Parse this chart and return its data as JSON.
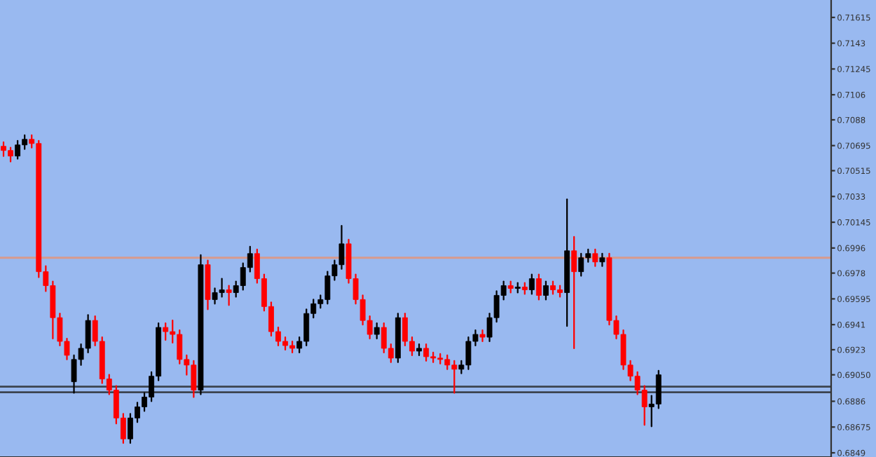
{
  "chart_data": {
    "type": "candlestick",
    "categories": [
      null,
      null,
      null,
      null,
      null,
      null,
      null,
      null,
      null,
      null,
      null,
      null,
      null,
      null,
      null,
      null,
      null,
      null,
      null,
      null,
      null,
      null,
      null,
      null,
      null,
      null,
      null,
      null,
      null,
      null,
      null,
      null,
      null,
      null,
      null,
      null,
      null,
      null,
      null,
      null,
      null,
      null,
      null,
      null,
      null,
      null,
      null,
      null,
      null,
      null,
      null,
      null,
      null,
      null,
      null,
      null,
      null,
      null,
      null,
      null,
      null,
      null,
      null,
      null,
      null,
      null,
      null,
      null,
      null,
      null,
      null,
      null,
      null,
      null,
      null,
      null,
      null,
      null,
      null,
      null,
      null,
      null,
      null,
      null,
      null,
      null,
      null,
      null,
      null,
      null,
      null,
      null,
      null,
      null,
      null,
      null,
      null,
      null,
      null,
      null,
      null,
      null,
      null,
      null,
      null,
      null,
      null,
      null,
      null,
      null,
      null,
      null,
      null,
      null,
      null,
      null,
      null,
      null
    ],
    "ohlc": [
      [
        0.7069,
        0.7072,
        0.7062,
        0.7066
      ],
      [
        0.7066,
        0.7068,
        0.7058,
        0.7062
      ],
      [
        0.7062,
        0.7073,
        0.706,
        0.707
      ],
      [
        0.707,
        0.7077,
        0.7067,
        0.7074
      ],
      [
        0.7074,
        0.7077,
        0.7068,
        0.7071
      ],
      [
        0.7071,
        0.7073,
        0.6975,
        0.6979
      ],
      [
        0.6979,
        0.6983,
        0.6965,
        0.6969
      ],
      [
        0.6969,
        0.6972,
        0.6931,
        0.6946
      ],
      [
        0.6946,
        0.6949,
        0.6926,
        0.6929
      ],
      [
        0.6929,
        0.6931,
        0.6916,
        0.6919
      ],
      [
        0.69,
        0.6919,
        0.6892,
        0.6916
      ],
      [
        0.6916,
        0.6927,
        0.6912,
        0.6924
      ],
      [
        0.6924,
        0.6948,
        0.6921,
        0.6944
      ],
      [
        0.6944,
        0.6947,
        0.6926,
        0.6929
      ],
      [
        0.6929,
        0.6932,
        0.6899,
        0.6902
      ],
      [
        0.6902,
        0.6905,
        0.6891,
        0.6894
      ],
      [
        0.6894,
        0.6897,
        0.687,
        0.6874
      ],
      [
        0.6874,
        0.6877,
        0.6856,
        0.6859
      ],
      [
        0.6859,
        0.6877,
        0.6856,
        0.6874
      ],
      [
        0.6874,
        0.6885,
        0.6871,
        0.6882
      ],
      [
        0.6882,
        0.6892,
        0.6879,
        0.6889
      ],
      [
        0.6889,
        0.6907,
        0.6886,
        0.6904
      ],
      [
        0.6904,
        0.6942,
        0.6901,
        0.6939
      ],
      [
        0.6939,
        0.6942,
        0.693,
        0.6936
      ],
      [
        0.6936,
        0.6944,
        0.6928,
        0.6934
      ],
      [
        0.6934,
        0.6937,
        0.6913,
        0.6916
      ],
      [
        0.6916,
        0.6919,
        0.6905,
        0.6912
      ],
      [
        0.6912,
        0.6915,
        0.6889,
        0.6894
      ],
      [
        0.6894,
        0.6991,
        0.6891,
        0.6984
      ],
      [
        0.6984,
        0.6987,
        0.6952,
        0.6959
      ],
      [
        0.6959,
        0.6967,
        0.6956,
        0.6964
      ],
      [
        0.6964,
        0.6974,
        0.6961,
        0.6966
      ],
      [
        0.6966,
        0.6969,
        0.6955,
        0.6964
      ],
      [
        0.6964,
        0.6972,
        0.6961,
        0.6969
      ],
      [
        0.6969,
        0.6985,
        0.6966,
        0.6982
      ],
      [
        0.6982,
        0.6997,
        0.6979,
        0.6992
      ],
      [
        0.6992,
        0.6995,
        0.6971,
        0.6974
      ],
      [
        0.6974,
        0.6977,
        0.6951,
        0.6954
      ],
      [
        0.6954,
        0.6957,
        0.6933,
        0.6936
      ],
      [
        0.6936,
        0.6939,
        0.6926,
        0.6929
      ],
      [
        0.6929,
        0.6932,
        0.6923,
        0.6926
      ],
      [
        0.6926,
        0.6929,
        0.6921,
        0.6924
      ],
      [
        0.6924,
        0.6932,
        0.6921,
        0.6929
      ],
      [
        0.6929,
        0.6952,
        0.6926,
        0.6949
      ],
      [
        0.6949,
        0.6959,
        0.6946,
        0.6956
      ],
      [
        0.6956,
        0.6962,
        0.6953,
        0.6959
      ],
      [
        0.6959,
        0.6979,
        0.6956,
        0.6976
      ],
      [
        0.6976,
        0.6987,
        0.6973,
        0.6984
      ],
      [
        0.6984,
        0.7012,
        0.6981,
        0.6999
      ],
      [
        0.6999,
        0.7002,
        0.6971,
        0.6974
      ],
      [
        0.6974,
        0.6977,
        0.6956,
        0.6959
      ],
      [
        0.6959,
        0.6962,
        0.6941,
        0.6944
      ],
      [
        0.6944,
        0.6947,
        0.6931,
        0.6934
      ],
      [
        0.6934,
        0.6942,
        0.6931,
        0.6939
      ],
      [
        0.6939,
        0.6942,
        0.6921,
        0.6924
      ],
      [
        0.6924,
        0.6927,
        0.6914,
        0.6917
      ],
      [
        0.6917,
        0.6949,
        0.6914,
        0.6946
      ],
      [
        0.6946,
        0.6949,
        0.6926,
        0.6929
      ],
      [
        0.6929,
        0.6932,
        0.6919,
        0.6922
      ],
      [
        0.6922,
        0.6927,
        0.6919,
        0.6924
      ],
      [
        0.6924,
        0.6927,
        0.6915,
        0.6918
      ],
      [
        0.6918,
        0.6921,
        0.6914,
        0.6917
      ],
      [
        0.6917,
        0.692,
        0.6913,
        0.6916
      ],
      [
        0.6916,
        0.6919,
        0.6909,
        0.6912
      ],
      [
        0.6912,
        0.6915,
        0.6892,
        0.6909
      ],
      [
        0.6909,
        0.6915,
        0.6906,
        0.6912
      ],
      [
        0.6912,
        0.6932,
        0.6909,
        0.6929
      ],
      [
        0.6929,
        0.6937,
        0.6926,
        0.6934
      ],
      [
        0.6934,
        0.6937,
        0.6929,
        0.6932
      ],
      [
        0.6932,
        0.6949,
        0.6929,
        0.6946
      ],
      [
        0.6946,
        0.6965,
        0.6943,
        0.6962
      ],
      [
        0.6962,
        0.6972,
        0.6959,
        0.6969
      ],
      [
        0.6969,
        0.6972,
        0.6964,
        0.6967
      ],
      [
        0.6967,
        0.6971,
        0.6964,
        0.6968
      ],
      [
        0.6968,
        0.6971,
        0.6963,
        0.6966
      ],
      [
        0.6966,
        0.6977,
        0.6963,
        0.6974
      ],
      [
        0.6974,
        0.6977,
        0.6959,
        0.6962
      ],
      [
        0.6962,
        0.6972,
        0.6959,
        0.6969
      ],
      [
        0.6969,
        0.6972,
        0.6963,
        0.6966
      ],
      [
        0.6966,
        0.6969,
        0.6961,
        0.6964
      ],
      [
        0.6964,
        0.7031,
        0.694,
        0.6994
      ],
      [
        0.6994,
        0.7004,
        0.6924,
        0.6979
      ],
      [
        0.6979,
        0.6992,
        0.6976,
        0.6989
      ],
      [
        0.6989,
        0.6995,
        0.6986,
        0.6992
      ],
      [
        0.6992,
        0.6995,
        0.6983,
        0.6986
      ],
      [
        0.6986,
        0.6992,
        0.6983,
        0.6989
      ],
      [
        0.6989,
        0.6992,
        0.6941,
        0.6944
      ],
      [
        0.6944,
        0.6947,
        0.6931,
        0.6934
      ],
      [
        0.6934,
        0.6937,
        0.6909,
        0.6912
      ],
      [
        0.6912,
        0.6915,
        0.6901,
        0.6904
      ],
      [
        0.6904,
        0.6907,
        0.6891,
        0.6894
      ],
      [
        0.6894,
        0.6897,
        0.6869,
        0.6882
      ],
      [
        0.6882,
        0.689,
        0.6868,
        0.6884
      ],
      [
        0.6884,
        0.6908,
        0.6881,
        0.6905
      ],
      null,
      null,
      null,
      null,
      null,
      null,
      null,
      null,
      null,
      null,
      null,
      null,
      null,
      null,
      null,
      null,
      null,
      null,
      null,
      null,
      null,
      null,
      null,
      null
    ],
    "colors": [
      "#ff0000",
      "#ff0000",
      "#000000",
      "#000000",
      "#ff0000",
      "#ff0000",
      "#ff0000",
      "#ff0000",
      "#ff0000",
      "#ff0000",
      "#000000",
      "#000000",
      "#000000",
      "#ff0000",
      "#ff0000",
      "#ff0000",
      "#ff0000",
      "#ff0000",
      "#000000",
      "#000000",
      "#000000",
      "#000000",
      "#000000",
      "#ff0000",
      "#ff0000",
      "#ff0000",
      "#ff0000",
      "#ff0000",
      "#000000",
      "#ff0000",
      "#000000",
      "#000000",
      "#ff0000",
      "#000000",
      "#000000",
      "#000000",
      "#ff0000",
      "#ff0000",
      "#ff0000",
      "#ff0000",
      "#ff0000",
      "#ff0000",
      "#000000",
      "#000000",
      "#000000",
      "#000000",
      "#000000",
      "#000000",
      "#000000",
      "#ff0000",
      "#ff0000",
      "#ff0000",
      "#ff0000",
      "#000000",
      "#ff0000",
      "#ff0000",
      "#000000",
      "#ff0000",
      "#ff0000",
      "#000000",
      "#ff0000",
      "#ff0000",
      "#ff0000",
      "#ff0000",
      "#ff0000",
      "#000000",
      "#000000",
      "#000000",
      "#ff0000",
      "#000000",
      "#000000",
      "#000000",
      "#ff0000",
      "#000000",
      "#ff0000",
      "#000000",
      "#ff0000",
      "#000000",
      "#ff0000",
      "#ff0000",
      "#000000",
      "#ff0000",
      "#000000",
      "#000000",
      "#ff0000",
      "#000000",
      "#ff0000",
      "#ff0000",
      "#ff0000",
      "#ff0000",
      "#ff0000",
      "#ff0000",
      "#000000",
      "#000000",
      null,
      null,
      null,
      null,
      null,
      null,
      null,
      null,
      null,
      null,
      null,
      null,
      null,
      null,
      null,
      null,
      null,
      null,
      null,
      null,
      null,
      null,
      null,
      null
    ],
    "ylim": [
      0.6846,
      0.7174
    ],
    "yticks": [
      0.71615,
      0.7143,
      0.71245,
      0.7106,
      0.7088,
      0.70695,
      0.70515,
      0.7033,
      0.70145,
      0.6996,
      0.6978,
      0.69595,
      0.6941,
      0.6923,
      {
        "value": 0.6905,
        "label": "0.69050"
      },
      0.6886,
      0.68675,
      0.6849
    ],
    "ref_lines": [
      {
        "axis": "y",
        "value": 0.6989,
        "color": "#d89a8c"
      },
      {
        "axis": "y",
        "value": 0.68965,
        "color": "#3c4450"
      },
      {
        "axis": "y",
        "value": 0.68925,
        "color": "#3c4450"
      }
    ],
    "grid": false,
    "tick_labels": "y"
  }
}
